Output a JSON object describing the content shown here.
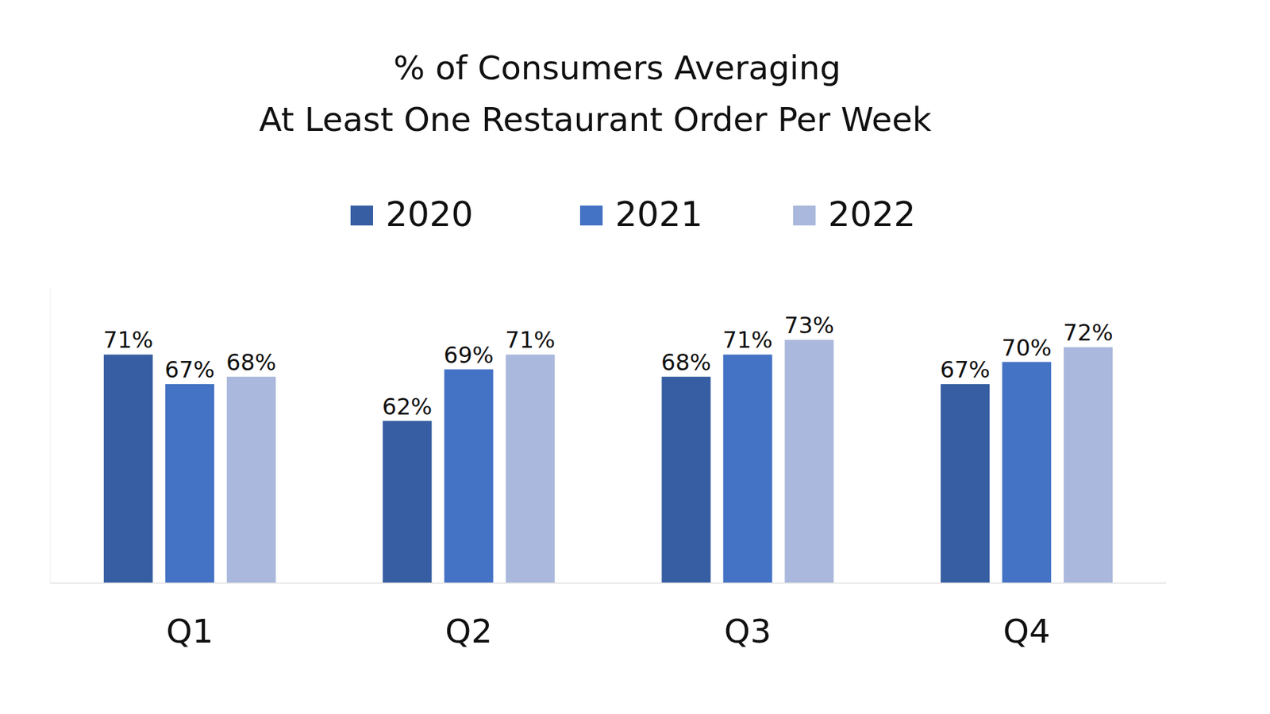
{
  "chart_data": {
    "type": "bar",
    "title": "% of Consumers Averaging\nAt Least One Restaurant Order Per Week",
    "categories": [
      "Q1",
      "Q2",
      "Q3",
      "Q4"
    ],
    "series": [
      {
        "name": "2020",
        "color": "#375ea2",
        "values": [
          71,
          62,
          68,
          67
        ],
        "value_labels": [
          "71%",
          "62%",
          "68%",
          "67%"
        ]
      },
      {
        "name": "2021",
        "color": "#4472c4",
        "values": [
          67,
          69,
          71,
          70
        ],
        "value_labels": [
          "67%",
          "69%",
          "71%",
          "70%"
        ]
      },
      {
        "name": "2022",
        "color": "#a9b8dc",
        "values": [
          68,
          71,
          73,
          72
        ],
        "value_labels": [
          "68%",
          "71%",
          "73%",
          "72%"
        ]
      }
    ],
    "ylim": [
      40,
      80
    ],
    "grid": false,
    "legend": "top",
    "data_labels": true,
    "tick_labels": "x"
  }
}
